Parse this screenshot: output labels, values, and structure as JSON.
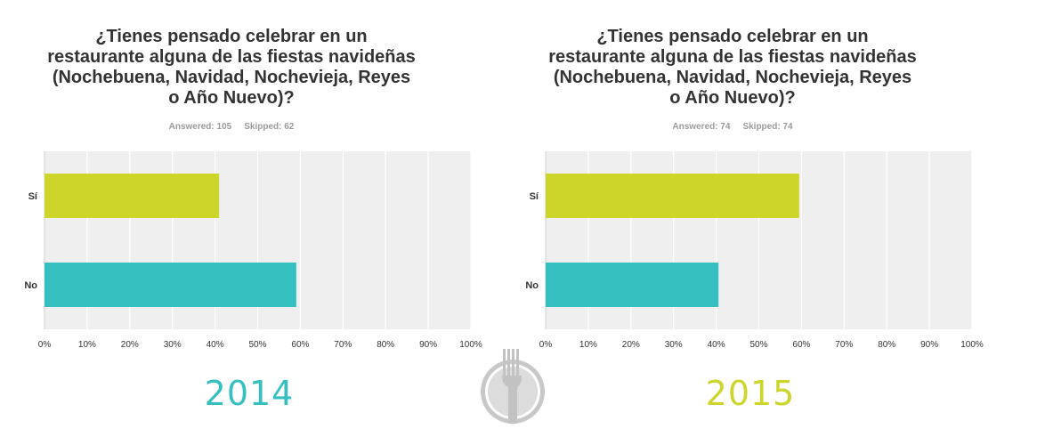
{
  "chart_data": [
    {
      "type": "bar",
      "orientation": "horizontal",
      "title": [
        "¿Tienes pensado celebrar en un",
        "restaurante alguna de las fiestas navideñas",
        "(Nochebuena, Navidad, Nochevieja, Reyes",
        "o Año Nuevo)?"
      ],
      "stats": {
        "answered": "Answered: 105",
        "skipped": "Skipped: 62"
      },
      "categories": [
        "Sí",
        "No"
      ],
      "values": [
        40.95,
        59.05
      ],
      "colors": [
        "#ced52a",
        "#36bfc1"
      ],
      "xticks": [
        "0%",
        "10%",
        "20%",
        "30%",
        "40%",
        "50%",
        "60%",
        "70%",
        "80%",
        "90%",
        "100%"
      ],
      "xlim": [
        0,
        100
      ],
      "grid": true,
      "caption": "2014",
      "caption_color": "#36bfc1"
    },
    {
      "type": "bar",
      "orientation": "horizontal",
      "title": [
        "¿Tienes pensado celebrar en un",
        "restaurante alguna de las fiestas navideñas",
        "(Nochebuena, Navidad, Nochevieja, Reyes",
        "o Año Nuevo)?"
      ],
      "stats": {
        "answered": "Answered: 74",
        "skipped": "Skipped: 74"
      },
      "categories": [
        "Sí",
        "No"
      ],
      "values": [
        59.46,
        40.54
      ],
      "colors": [
        "#ced52a",
        "#36bfc1"
      ],
      "xticks": [
        "0%",
        "10%",
        "20%",
        "30%",
        "40%",
        "50%",
        "60%",
        "70%",
        "80%",
        "90%",
        "100%"
      ],
      "xlim": [
        0,
        100
      ],
      "grid": true,
      "caption": "2015",
      "caption_color": "#ced52a"
    }
  ],
  "logo": {
    "icon": "fork-plate-logo-icon"
  }
}
